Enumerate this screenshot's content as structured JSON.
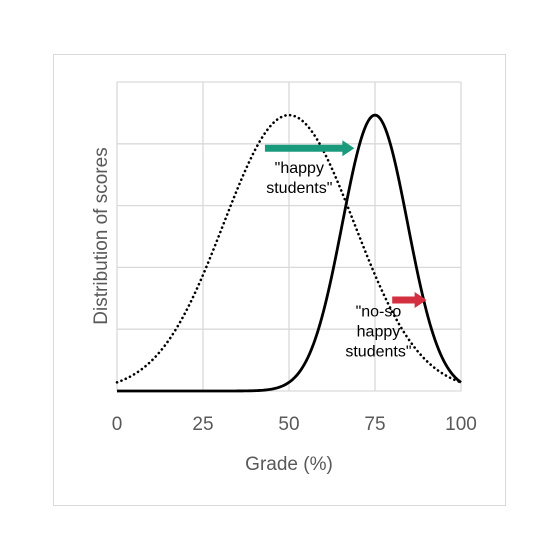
{
  "chart_data": {
    "type": "line",
    "title": "",
    "xlabel": "Grade (%)",
    "ylabel": "Distribution of scores",
    "xlim": [
      0,
      100
    ],
    "ylim": [
      0,
      1.12
    ],
    "x_ticks": [
      0,
      25,
      50,
      75,
      100
    ],
    "grid": true,
    "series": [
      {
        "style": "dotted",
        "color": "#000000",
        "shape": "normal",
        "mean": 50,
        "sd": 19,
        "peak": 1.0,
        "points": [
          [
            0,
            0.03
          ],
          [
            10,
            0.11
          ],
          [
            20,
            0.29
          ],
          [
            30,
            0.57
          ],
          [
            40,
            0.87
          ],
          [
            50,
            1.0
          ],
          [
            60,
            0.87
          ],
          [
            70,
            0.57
          ],
          [
            80,
            0.29
          ],
          [
            90,
            0.11
          ],
          [
            100,
            0.03
          ]
        ]
      },
      {
        "style": "solid",
        "color": "#000000",
        "shape": "normal",
        "mean": 75,
        "sd": 9.5,
        "peak": 1.0,
        "points": [
          [
            0,
            0.0
          ],
          [
            40,
            0.0
          ],
          [
            50,
            0.03
          ],
          [
            55,
            0.11
          ],
          [
            60,
            0.29
          ],
          [
            65,
            0.57
          ],
          [
            70,
            0.87
          ],
          [
            75,
            1.0
          ],
          [
            80,
            0.87
          ],
          [
            85,
            0.57
          ],
          [
            90,
            0.29
          ],
          [
            95,
            0.11
          ],
          [
            100,
            0.03
          ]
        ]
      }
    ],
    "annotations": [
      {
        "lines": [
          "\"happy",
          "students\""
        ],
        "arrow_color": "#1a9a7c",
        "arrow_from": [
          43,
          0.88
        ],
        "arrow_to": [
          69,
          0.88
        ],
        "text_at": [
          53,
          0.79
        ]
      },
      {
        "lines": [
          "\"no-so",
          "happy",
          "students\""
        ],
        "arrow_color": "#d32f3f",
        "arrow_from": [
          80,
          0.33
        ],
        "arrow_to": [
          90,
          0.33
        ],
        "text_at": [
          76,
          0.27
        ]
      }
    ]
  }
}
